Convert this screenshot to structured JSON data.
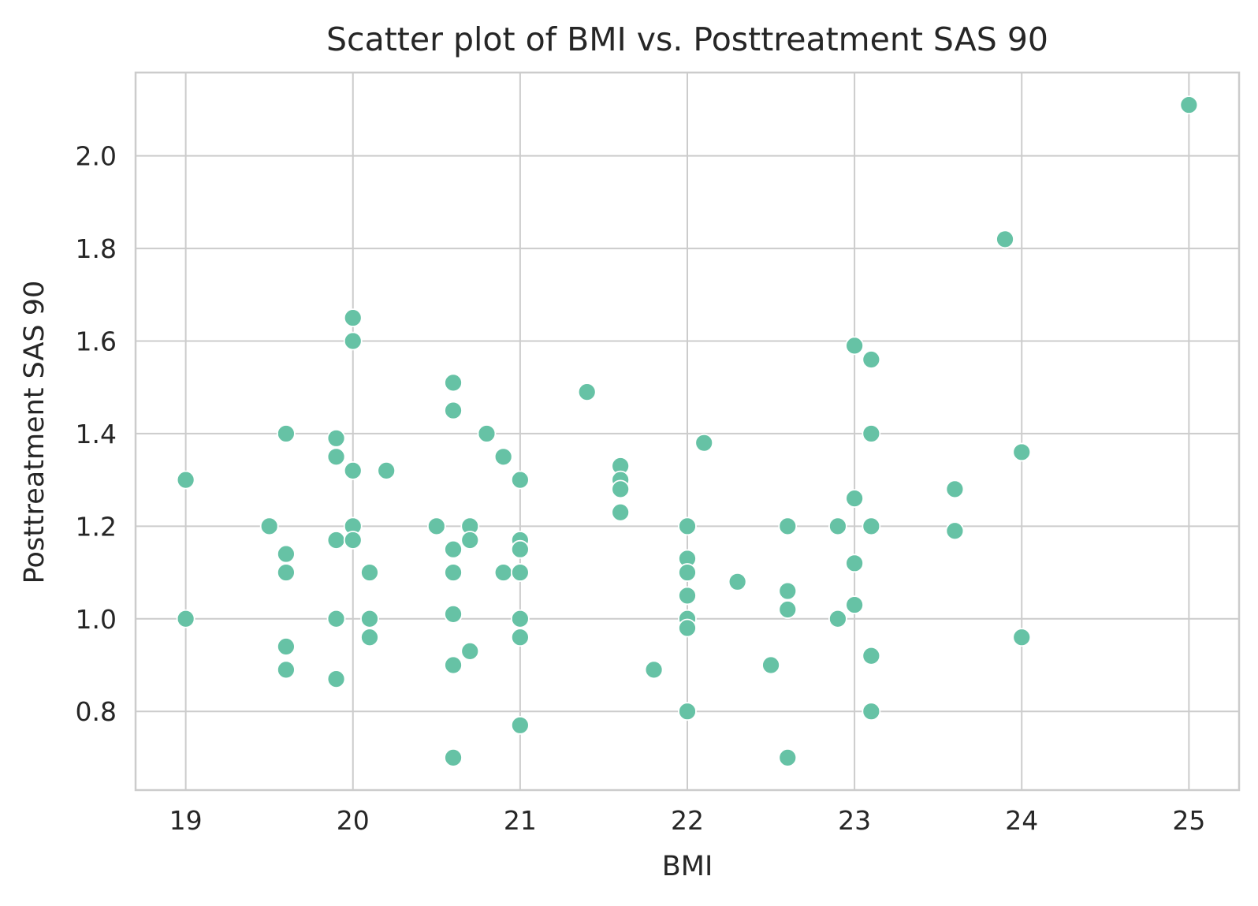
{
  "chart_data": {
    "type": "scatter",
    "title": "Scatter plot of BMI vs. Posttreatment SAS 90",
    "xlabel": "BMI",
    "ylabel": "Posttreatment SAS 90",
    "xlim": [
      18.7,
      25.3
    ],
    "ylim": [
      0.63,
      2.18
    ],
    "xticks": [
      19,
      20,
      21,
      22,
      23,
      24,
      25
    ],
    "yticks": [
      0.8,
      1.0,
      1.2,
      1.4,
      1.6,
      1.8,
      2.0
    ],
    "ytick_labels": [
      "0.8",
      "1.0",
      "1.2",
      "1.4",
      "1.6",
      "1.8",
      "2.0"
    ],
    "grid": true,
    "point_color": "#66c2a5",
    "points": [
      {
        "x": 19.0,
        "y": 1.3
      },
      {
        "x": 19.0,
        "y": 1.0
      },
      {
        "x": 19.5,
        "y": 1.2
      },
      {
        "x": 19.6,
        "y": 1.4
      },
      {
        "x": 19.6,
        "y": 1.14
      },
      {
        "x": 19.6,
        "y": 1.1
      },
      {
        "x": 19.6,
        "y": 0.94
      },
      {
        "x": 19.6,
        "y": 0.89
      },
      {
        "x": 19.9,
        "y": 1.39
      },
      {
        "x": 19.9,
        "y": 1.35
      },
      {
        "x": 19.9,
        "y": 1.17
      },
      {
        "x": 19.9,
        "y": 1.0
      },
      {
        "x": 19.9,
        "y": 0.87
      },
      {
        "x": 20.0,
        "y": 1.65
      },
      {
        "x": 20.0,
        "y": 1.6
      },
      {
        "x": 20.0,
        "y": 1.32
      },
      {
        "x": 20.0,
        "y": 1.2
      },
      {
        "x": 20.0,
        "y": 1.17
      },
      {
        "x": 20.1,
        "y": 1.1
      },
      {
        "x": 20.1,
        "y": 1.0
      },
      {
        "x": 20.1,
        "y": 0.96
      },
      {
        "x": 20.2,
        "y": 1.32
      },
      {
        "x": 20.5,
        "y": 1.2
      },
      {
        "x": 20.6,
        "y": 1.51
      },
      {
        "x": 20.6,
        "y": 1.45
      },
      {
        "x": 20.6,
        "y": 1.15
      },
      {
        "x": 20.6,
        "y": 1.1
      },
      {
        "x": 20.6,
        "y": 1.01
      },
      {
        "x": 20.6,
        "y": 0.9
      },
      {
        "x": 20.6,
        "y": 0.7
      },
      {
        "x": 20.7,
        "y": 1.2
      },
      {
        "x": 20.7,
        "y": 1.17
      },
      {
        "x": 20.7,
        "y": 0.93
      },
      {
        "x": 20.8,
        "y": 1.4
      },
      {
        "x": 20.9,
        "y": 1.35
      },
      {
        "x": 20.9,
        "y": 1.1
      },
      {
        "x": 21.0,
        "y": 1.3
      },
      {
        "x": 21.0,
        "y": 1.17
      },
      {
        "x": 21.0,
        "y": 1.15
      },
      {
        "x": 21.0,
        "y": 1.1
      },
      {
        "x": 21.0,
        "y": 1.0
      },
      {
        "x": 21.0,
        "y": 0.96
      },
      {
        "x": 21.0,
        "y": 0.77
      },
      {
        "x": 21.4,
        "y": 1.49
      },
      {
        "x": 21.6,
        "y": 1.33
      },
      {
        "x": 21.6,
        "y": 1.3
      },
      {
        "x": 21.6,
        "y": 1.28
      },
      {
        "x": 21.6,
        "y": 1.23
      },
      {
        "x": 21.8,
        "y": 0.89
      },
      {
        "x": 22.0,
        "y": 1.2
      },
      {
        "x": 22.0,
        "y": 1.13
      },
      {
        "x": 22.0,
        "y": 1.1
      },
      {
        "x": 22.0,
        "y": 1.05
      },
      {
        "x": 22.0,
        "y": 1.0
      },
      {
        "x": 22.0,
        "y": 0.98
      },
      {
        "x": 22.0,
        "y": 0.8
      },
      {
        "x": 22.1,
        "y": 1.38
      },
      {
        "x": 22.3,
        "y": 1.08
      },
      {
        "x": 22.5,
        "y": 0.9
      },
      {
        "x": 22.6,
        "y": 1.2
      },
      {
        "x": 22.6,
        "y": 1.06
      },
      {
        "x": 22.6,
        "y": 1.02
      },
      {
        "x": 22.6,
        "y": 0.7
      },
      {
        "x": 22.9,
        "y": 1.2
      },
      {
        "x": 22.9,
        "y": 1.0
      },
      {
        "x": 23.0,
        "y": 1.59
      },
      {
        "x": 23.0,
        "y": 1.26
      },
      {
        "x": 23.0,
        "y": 1.12
      },
      {
        "x": 23.0,
        "y": 1.03
      },
      {
        "x": 23.1,
        "y": 1.56
      },
      {
        "x": 23.1,
        "y": 1.4
      },
      {
        "x": 23.1,
        "y": 1.2
      },
      {
        "x": 23.1,
        "y": 0.92
      },
      {
        "x": 23.1,
        "y": 0.8
      },
      {
        "x": 23.6,
        "y": 1.28
      },
      {
        "x": 23.6,
        "y": 1.19
      },
      {
        "x": 23.9,
        "y": 1.82
      },
      {
        "x": 24.0,
        "y": 1.36
      },
      {
        "x": 24.0,
        "y": 0.96
      },
      {
        "x": 25.0,
        "y": 2.11
      }
    ]
  }
}
